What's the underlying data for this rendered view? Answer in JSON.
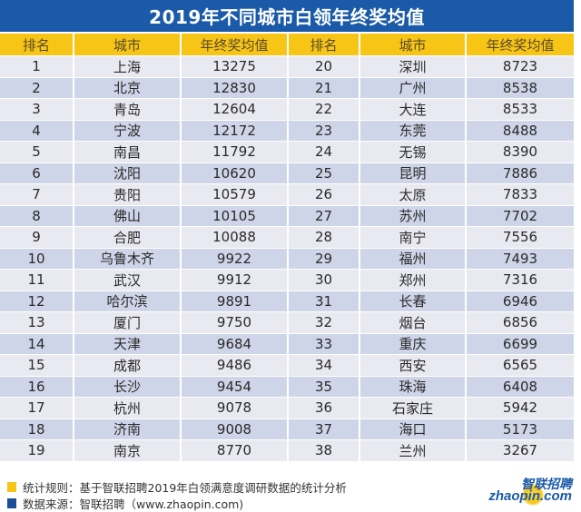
{
  "title": "2019年不同城市白领年终奖均值",
  "table": {
    "headers": [
      "排名",
      "城市",
      "年终奖均值",
      "排名",
      "城市",
      "年终奖均值"
    ],
    "rows": [
      {
        "rank_left": "1",
        "city_left": "上海",
        "value_left": "13275",
        "rank_right": "20",
        "city_right": "深圳",
        "value_right": "8723"
      },
      {
        "rank_left": "2",
        "city_left": "北京",
        "value_left": "12830",
        "rank_right": "21",
        "city_right": "广州",
        "value_right": "8538"
      },
      {
        "rank_left": "3",
        "city_left": "青岛",
        "value_left": "12604",
        "rank_right": "22",
        "city_right": "大连",
        "value_right": "8533"
      },
      {
        "rank_left": "4",
        "city_left": "宁波",
        "value_left": "12172",
        "rank_right": "23",
        "city_right": "东莞",
        "value_right": "8488"
      },
      {
        "rank_left": "5",
        "city_left": "南昌",
        "value_left": "11792",
        "rank_right": "24",
        "city_right": "无锡",
        "value_right": "8390"
      },
      {
        "rank_left": "6",
        "city_left": "沈阳",
        "value_left": "10620",
        "rank_right": "25",
        "city_right": "昆明",
        "value_right": "7886"
      },
      {
        "rank_left": "7",
        "city_left": "贵阳",
        "value_left": "10579",
        "rank_right": "26",
        "city_right": "太原",
        "value_right": "7833"
      },
      {
        "rank_left": "8",
        "city_left": "佛山",
        "value_left": "10105",
        "rank_right": "27",
        "city_right": "苏州",
        "value_right": "7702"
      },
      {
        "rank_left": "9",
        "city_left": "合肥",
        "value_left": "10088",
        "rank_right": "28",
        "city_right": "南宁",
        "value_right": "7556"
      },
      {
        "rank_left": "10",
        "city_left": "乌鲁木齐",
        "value_left": "9922",
        "rank_right": "29",
        "city_right": "福州",
        "value_right": "7493"
      },
      {
        "rank_left": "11",
        "city_left": "武汉",
        "value_left": "9912",
        "rank_right": "30",
        "city_right": "郑州",
        "value_right": "7316"
      },
      {
        "rank_left": "12",
        "city_left": "哈尔滨",
        "value_left": "9891",
        "rank_right": "31",
        "city_right": "长春",
        "value_right": "6946"
      },
      {
        "rank_left": "13",
        "city_left": "厦门",
        "value_left": "9750",
        "rank_right": "32",
        "city_right": "烟台",
        "value_right": "6856"
      },
      {
        "rank_left": "14",
        "city_left": "天津",
        "value_left": "9684",
        "rank_right": "33",
        "city_right": "重庆",
        "value_right": "6699"
      },
      {
        "rank_left": "15",
        "city_left": "成都",
        "value_left": "9486",
        "rank_right": "34",
        "city_right": "西安",
        "value_right": "6565"
      },
      {
        "rank_left": "16",
        "city_left": "长沙",
        "value_left": "9454",
        "rank_right": "35",
        "city_right": "珠海",
        "value_right": "6408"
      },
      {
        "rank_left": "17",
        "city_left": "杭州",
        "value_left": "9078",
        "rank_right": "36",
        "city_right": "石家庄",
        "value_right": "5942"
      },
      {
        "rank_left": "18",
        "city_left": "济南",
        "value_left": "9008",
        "rank_right": "37",
        "city_right": "海口",
        "value_right": "5173"
      },
      {
        "rank_left": "19",
        "city_left": "南京",
        "value_left": "8770",
        "rank_right": "38",
        "city_right": "兰州",
        "value_right": "3267"
      }
    ]
  },
  "footer": {
    "rule": {
      "color": "#f7c516",
      "text": "统计规则：基于智联招聘2019年白领满意度调研数据的统计分析"
    },
    "source": {
      "color": "#1a4f96",
      "text": "数据来源：智联招聘（www.zhaopin.com)"
    }
  },
  "logo": {
    "cn": "智联招聘",
    "en": "zhaopin.com"
  },
  "colors": {
    "title_bg": "#1a5aa8",
    "header_bg": "#f7c516",
    "row_odd": "#e9eaf1",
    "row_even": "#cfd5e8"
  }
}
